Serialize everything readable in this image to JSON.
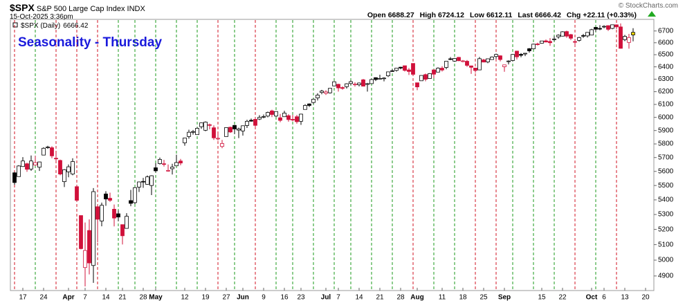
{
  "chart_data": {
    "type": "candlestick",
    "symbol": "$SPX",
    "name": "S&P 500 Large Cap Index INDX",
    "timestamp": "15-Oct-2025 3:36pm",
    "copyright": "© StockCharts.com",
    "legend": "$SPX (Daily)",
    "annotation": "Seasonality - Thursday",
    "quote_labels": [
      "Open",
      "High",
      "Low",
      "Last",
      "Chg"
    ],
    "change_label": "+22.11 (+0.33%)",
    "log_scale": true,
    "up_color": "#000000",
    "down_color": "#d0103a",
    "last_color": "#f5d800",
    "ylim": [
      4818,
      6800
    ],
    "yticks": [
      4900,
      5000,
      5100,
      5200,
      5300,
      5400,
      5500,
      5600,
      5700,
      5800,
      5900,
      6000,
      6100,
      6200,
      6300,
      6400,
      6500,
      6600,
      6700
    ],
    "categories": [
      null,
      null,
      "17",
      null,
      null,
      null,
      null,
      "24",
      null,
      null,
      null,
      null,
      null,
      "Apr",
      null,
      null,
      null,
      "7",
      null,
      null,
      null,
      null,
      "14",
      null,
      null,
      null,
      "21",
      null,
      null,
      null,
      null,
      "28",
      null,
      null,
      "May",
      null,
      null,
      null,
      null,
      null,
      null,
      "12",
      null,
      null,
      null,
      null,
      "19",
      null,
      null,
      null,
      null,
      "27",
      null,
      null,
      null,
      "Jun",
      null,
      null,
      null,
      null,
      "9",
      null,
      null,
      null,
      null,
      "16",
      null,
      null,
      null,
      "23",
      null,
      null,
      null,
      null,
      null,
      "Jul",
      null,
      null,
      "7",
      null,
      null,
      null,
      null,
      "14",
      null,
      null,
      null,
      null,
      "21",
      null,
      null,
      null,
      null,
      "28",
      null,
      null,
      null,
      "Aug",
      null,
      null,
      null,
      null,
      null,
      "11",
      null,
      null,
      null,
      null,
      "18",
      null,
      null,
      null,
      null,
      "25",
      null,
      null,
      null,
      null,
      "Sep",
      null,
      null,
      null,
      null,
      null,
      null,
      null,
      null,
      "15",
      null,
      null,
      null,
      null,
      "22",
      null,
      null,
      null,
      null,
      null,
      null,
      "Oct",
      null,
      null,
      "6",
      null,
      null,
      null,
      null,
      "13",
      null,
      null,
      null,
      null,
      "20",
      null
    ],
    "thursdays": [
      0,
      5,
      10,
      15,
      20,
      25,
      29,
      34,
      39,
      44,
      49,
      53,
      58,
      63,
      67,
      72,
      77,
      81,
      86,
      91,
      96,
      101,
      106,
      111,
      116,
      120,
      125,
      130,
      135,
      140,
      145
    ],
    "thursday_colors": [
      "#d01020",
      "#1a9a1a",
      "#d01020",
      "#d01020",
      "#d01020",
      "#1a9a1a",
      "#1a9a1a",
      "#1a9a1a",
      "#1a9a1a",
      "#1a9a1a",
      "#d01020",
      "#1a9a1a",
      "#d01020",
      "#1a9a1a",
      "#1a9a1a",
      "#1a9a1a",
      "#1a9a1a",
      "#1a9a1a",
      "#1a9a1a",
      "#1a9a1a",
      "#d01020",
      "#1a9a1a",
      "#1a9a1a",
      "#d01020",
      "#d01020",
      "#1a9a1a",
      "#1a9a1a",
      "#1a9a1a",
      "#d01020",
      "#1a9a1a",
      "#d01020"
    ],
    "ohlc": [
      [
        5590,
        5596,
        5505,
        5521
      ],
      [
        5563,
        5645,
        5563,
        5639
      ],
      [
        5635,
        5703,
        5633,
        5675
      ],
      [
        5655,
        5662,
        5597,
        5615
      ],
      [
        5617,
        5715,
        5604,
        5675
      ],
      [
        5646,
        5712,
        5641,
        5663
      ],
      [
        5630,
        5670,
        5603,
        5668
      ],
      [
        5718,
        5775,
        5718,
        5768
      ],
      [
        5775,
        5786,
        5764,
        5777
      ],
      [
        5772,
        5783,
        5695,
        5712
      ],
      [
        5695,
        5732,
        5670,
        5693
      ],
      [
        5679,
        5685,
        5572,
        5581
      ],
      [
        5527,
        5617,
        5489,
        5612
      ],
      [
        5597,
        5650,
        5558,
        5633
      ],
      [
        5581,
        5695,
        5572,
        5671
      ],
      [
        5492,
        5500,
        5390,
        5397
      ],
      [
        5293,
        5293,
        5069,
        5074
      ],
      [
        4953,
        5246,
        4835,
        5062
      ],
      [
        5193,
        5267,
        4910,
        4982
      ],
      [
        4966,
        5482,
        4857,
        5457
      ],
      [
        5353,
        5353,
        5115,
        5268
      ],
      [
        5256,
        5381,
        5221,
        5363
      ],
      [
        5441,
        5460,
        5359,
        5406
      ],
      [
        5411,
        5450,
        5386,
        5397
      ],
      [
        5336,
        5368,
        5220,
        5276
      ],
      [
        5305,
        5328,
        5255,
        5283
      ],
      [
        5232,
        5232,
        5101,
        5158
      ],
      [
        5207,
        5309,
        5207,
        5288
      ],
      [
        5395,
        5469,
        5356,
        5376
      ],
      [
        5381,
        5489,
        5371,
        5485
      ],
      [
        5489,
        5528,
        5455,
        5525
      ],
      [
        5529,
        5554,
        5484,
        5529
      ],
      [
        5508,
        5571,
        5505,
        5561
      ],
      [
        5500,
        5572,
        5433,
        5569
      ],
      [
        5626,
        5659,
        5592,
        5604
      ],
      [
        5656,
        5700,
        5650,
        5686
      ],
      [
        5655,
        5683,
        5635,
        5650
      ],
      [
        5605,
        5650,
        5598,
        5607
      ],
      [
        5619,
        5655,
        5578,
        5631
      ],
      [
        5640,
        5721,
        5640,
        5664
      ],
      [
        5675,
        5690,
        5644,
        5660
      ],
      [
        5808,
        5845,
        5787,
        5844
      ],
      [
        5855,
        5906,
        5839,
        5887
      ],
      [
        5890,
        5904,
        5869,
        5892
      ],
      [
        5869,
        5924,
        5867,
        5917
      ],
      [
        5929,
        5959,
        5913,
        5958
      ],
      [
        5902,
        5969,
        5895,
        5964
      ],
      [
        5944,
        5953,
        5909,
        5940
      ],
      [
        5921,
        5939,
        5830,
        5845
      ],
      [
        5841,
        5878,
        5825,
        5842
      ],
      [
        5781,
        5830,
        5768,
        5803
      ],
      [
        5855,
        5924,
        5855,
        5922
      ],
      [
        5925,
        5930,
        5882,
        5889
      ],
      [
        5939,
        5943,
        5874,
        5912
      ],
      [
        5903,
        5922,
        5843,
        5912
      ],
      [
        5897,
        5938,
        5862,
        5936
      ],
      [
        5938,
        5982,
        5919,
        5970
      ],
      [
        5978,
        5991,
        5967,
        5971
      ],
      [
        5985,
        5999,
        5921,
        5939
      ],
      [
        5987,
        6017,
        5979,
        6000
      ],
      [
        6004,
        6022,
        5993,
        6006
      ],
      [
        6010,
        6044,
        6000,
        6038
      ],
      [
        6050,
        6059,
        6002,
        6022
      ],
      [
        6010,
        6046,
        6003,
        6045
      ],
      [
        5997,
        6026,
        5963,
        5977
      ],
      [
        6005,
        6051,
        6005,
        6033
      ],
      [
        6013,
        6024,
        5967,
        5983
      ],
      [
        5985,
        6019,
        5970,
        5981
      ],
      [
        6005,
        6019,
        5952,
        5967
      ],
      [
        5970,
        6028,
        5943,
        6025
      ],
      [
        6061,
        6102,
        6061,
        6092
      ],
      [
        6104,
        6108,
        6080,
        6092
      ],
      [
        6115,
        6146,
        6105,
        6141
      ],
      [
        6151,
        6188,
        6131,
        6173
      ],
      [
        6194,
        6215,
        6180,
        6205
      ],
      [
        6187,
        6211,
        6174,
        6198
      ],
      [
        6191,
        6228,
        6185,
        6227
      ],
      [
        6246,
        6284,
        6243,
        6279
      ],
      [
        6259,
        6263,
        6201,
        6230
      ],
      [
        6233,
        6243,
        6216,
        6226
      ],
      [
        6240,
        6267,
        6225,
        6263
      ],
      [
        6265,
        6290,
        6254,
        6280
      ],
      [
        6255,
        6275,
        6241,
        6260
      ],
      [
        6255,
        6273,
        6242,
        6269
      ],
      [
        6295,
        6302,
        6242,
        6244
      ],
      [
        6258,
        6270,
        6201,
        6264
      ],
      [
        6264,
        6304,
        6264,
        6297
      ],
      [
        6312,
        6315,
        6285,
        6297
      ],
      [
        6304,
        6336,
        6303,
        6306
      ],
      [
        6306,
        6316,
        6282,
        6309
      ],
      [
        6327,
        6360,
        6317,
        6359
      ],
      [
        6368,
        6381,
        6360,
        6363
      ],
      [
        6371,
        6389,
        6361,
        6389
      ],
      [
        6397,
        6401,
        6380,
        6390
      ],
      [
        6409,
        6409,
        6362,
        6371
      ],
      [
        6375,
        6390,
        6334,
        6362
      ],
      [
        6428,
        6428,
        6331,
        6339
      ],
      [
        6271,
        6271,
        6212,
        6238
      ],
      [
        6287,
        6330,
        6286,
        6330
      ],
      [
        6337,
        6345,
        6283,
        6299
      ],
      [
        6305,
        6349,
        6303,
        6345
      ],
      [
        6375,
        6380,
        6307,
        6340
      ],
      [
        6357,
        6396,
        6356,
        6389
      ],
      [
        6389,
        6405,
        6362,
        6374
      ],
      [
        6395,
        6446,
        6380,
        6446
      ],
      [
        6466,
        6480,
        6455,
        6466
      ],
      [
        6447,
        6473,
        6441,
        6469
      ],
      [
        6478,
        6482,
        6447,
        6450
      ],
      [
        6445,
        6456,
        6437,
        6449
      ],
      [
        6446,
        6456,
        6400,
        6412
      ],
      [
        6408,
        6410,
        6343,
        6396
      ],
      [
        6390,
        6393,
        6353,
        6370
      ],
      [
        6375,
        6481,
        6374,
        6467
      ],
      [
        6457,
        6466,
        6438,
        6439
      ],
      [
        6440,
        6468,
        6430,
        6466
      ],
      [
        6460,
        6486,
        6458,
        6481
      ],
      [
        6485,
        6508,
        6467,
        6502
      ],
      [
        6491,
        6495,
        6445,
        6460
      ],
      [
        6401,
        6416,
        6360,
        6416
      ],
      [
        6444,
        6453,
        6420,
        6448
      ],
      [
        6452,
        6502,
        6445,
        6502
      ],
      [
        6530,
        6533,
        6461,
        6482
      ],
      [
        6503,
        6513,
        6479,
        6495
      ],
      [
        6506,
        6515,
        6488,
        6512
      ],
      [
        6550,
        6555,
        6517,
        6532
      ],
      [
        6549,
        6592,
        6545,
        6588
      ],
      [
        6590,
        6600,
        6577,
        6584
      ],
      [
        6596,
        6616,
        6593,
        6615
      ],
      [
        6616,
        6627,
        6604,
        6606
      ],
      [
        6611,
        6639,
        6574,
        6600
      ],
      [
        6627,
        6656,
        6613,
        6632
      ],
      [
        6650,
        6671,
        6634,
        6664
      ],
      [
        6656,
        6698,
        6654,
        6693
      ],
      [
        6695,
        6702,
        6642,
        6656
      ],
      [
        6669,
        6675,
        6623,
        6638
      ],
      [
        6610,
        6633,
        6570,
        6605
      ],
      [
        6620,
        6650,
        6610,
        6644
      ],
      [
        6661,
        6675,
        6641,
        6661
      ],
      [
        6658,
        6689,
        6644,
        6688
      ],
      [
        6665,
        6718,
        6663,
        6711
      ],
      [
        6731,
        6733,
        6694,
        6715
      ],
      [
        6722,
        6750,
        6707,
        6716
      ],
      [
        6735,
        6749,
        6723,
        6740
      ],
      [
        6746,
        6748,
        6700,
        6714
      ],
      [
        6722,
        6754,
        6715,
        6753
      ],
      [
        6753,
        6756,
        6716,
        6735
      ],
      [
        6735,
        6765,
        6551,
        6553
      ],
      [
        6626,
        6666,
        6613,
        6654
      ],
      [
        6603,
        6675,
        6550,
        6644
      ],
      [
        6688.27,
        6724.12,
        6612.11,
        6666.42
      ],
      null,
      null,
      null,
      null
    ]
  }
}
